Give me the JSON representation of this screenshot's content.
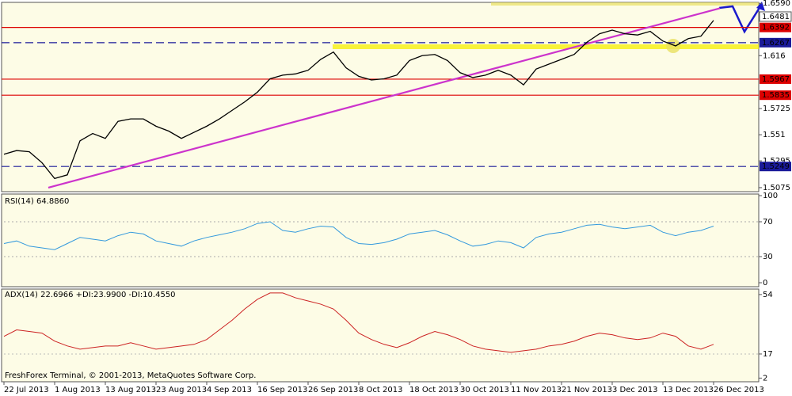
{
  "chart_data": [
    {
      "type": "line",
      "categories": [
        "22 Jul 2013",
        null,
        null,
        null,
        "1 Aug 2013",
        null,
        null,
        null,
        "13 Aug 2013",
        null,
        null,
        null,
        "23 Aug 2013",
        null,
        null,
        null,
        "4 Sep 2013",
        null,
        null,
        null,
        "16 Sep 2013",
        null,
        null,
        null,
        "26 Sep 2013",
        null,
        null,
        null,
        "8 Oct 2013",
        null,
        null,
        null,
        "18 Oct 2013",
        null,
        null,
        null,
        "30 Oct 2013",
        null,
        null,
        null,
        "11 Nov 2013",
        null,
        null,
        null,
        "21 Nov 2013",
        null,
        null,
        null,
        "3 Dec 2013",
        null,
        null,
        null,
        "13 Dec 2013",
        null,
        null,
        null,
        "26 Dec 2013"
      ],
      "series": [
        {
          "color": "#000000",
          "values": [
            1.535,
            1.538,
            1.537,
            1.528,
            1.515,
            1.518,
            1.546,
            1.552,
            1.548,
            1.562,
            1.564,
            1.564,
            1.558,
            1.554,
            1.548,
            1.553,
            1.558,
            1.564,
            1.571,
            1.578,
            1.586,
            1.597,
            1.6,
            1.601,
            1.604,
            1.613,
            1.619,
            1.606,
            1.599,
            1.596,
            1.597,
            1.6,
            1.612,
            1.616,
            1.617,
            1.612,
            1.602,
            1.598,
            1.6,
            1.604,
            1.6,
            1.592,
            1.605,
            1.609,
            1.613,
            1.617,
            1.627,
            1.634,
            1.637,
            1.634,
            1.633,
            1.636,
            1.628,
            1.624,
            1.63,
            1.632,
            1.645
          ]
        }
      ],
      "ylim": [
        1.5042,
        1.6585
      ],
      "yticks": [
        1.5075,
        1.5295,
        1.551,
        1.5725,
        1.616,
        {
          "value": 1.659,
          "label": "1.6590"
        }
      ],
      "levels": [
        {
          "value": 1.6481,
          "color": "#ffffff",
          "text_color": "#000000",
          "style": "none"
        },
        {
          "value": 1.6392,
          "color": "#dd0000",
          "text_color": "#ffffff",
          "style": "solid"
        },
        {
          "value": 1.6267,
          "color": "#1a1a99",
          "text_color": "#ffffff",
          "style": "dashed"
        },
        {
          "value": 1.5967,
          "color": "#dd0000",
          "text_color": "#ffffff",
          "style": "solid"
        },
        {
          "value": 1.5835,
          "color": "#dd0000",
          "text_color": "#ffffff",
          "style": "solid"
        },
        {
          "value": 1.5249,
          "color": "#1a1a99",
          "text_color": "#ffffff",
          "style": "dashed"
        }
      ],
      "trendline": {
        "color": "#cc33cc",
        "from": [
          3.5,
          1.5075
        ],
        "to": [
          56.5,
          1.655
        ]
      }
    },
    {
      "type": "line",
      "title": "RSI(14) 64.8860",
      "series": [
        {
          "color": "#3399dd",
          "values": [
            45,
            48,
            42,
            40,
            38,
            45,
            52,
            50,
            48,
            54,
            58,
            56,
            48,
            45,
            42,
            48,
            52,
            55,
            58,
            62,
            68,
            70,
            60,
            58,
            62,
            65,
            64,
            52,
            45,
            44,
            46,
            50,
            56,
            58,
            60,
            55,
            48,
            42,
            44,
            48,
            46,
            40,
            52,
            56,
            58,
            62,
            66,
            67,
            64,
            62,
            64,
            66,
            58,
            54,
            58,
            60,
            65
          ]
        }
      ],
      "ylim": [
        0,
        100
      ],
      "yticks": [
        0,
        30,
        70,
        100
      ]
    },
    {
      "type": "line",
      "title": "ADX(14) 22.6966 +DI:23.9900 -DI:10.4550",
      "series": [
        {
          "color": "#cc2222",
          "values": [
            28,
            32,
            31,
            30,
            25,
            22,
            20,
            21,
            22,
            22,
            24,
            22,
            20,
            21,
            22,
            23,
            26,
            32,
            38,
            45,
            51,
            55,
            55,
            52,
            50,
            48,
            45,
            38,
            30,
            26,
            23,
            21,
            24,
            28,
            31,
            29,
            26,
            22,
            20,
            19,
            18,
            19,
            20,
            22,
            23,
            25,
            28,
            30,
            29,
            27,
            26,
            27,
            30,
            28,
            22,
            20,
            23
          ]
        }
      ],
      "ylim": [
        1.7,
        57.4
      ],
      "yticks": [
        2,
        17,
        54
      ],
      "footer": "FreshForex Terminal, © 2001-2013, MetaQuotes Software Corp."
    }
  ]
}
